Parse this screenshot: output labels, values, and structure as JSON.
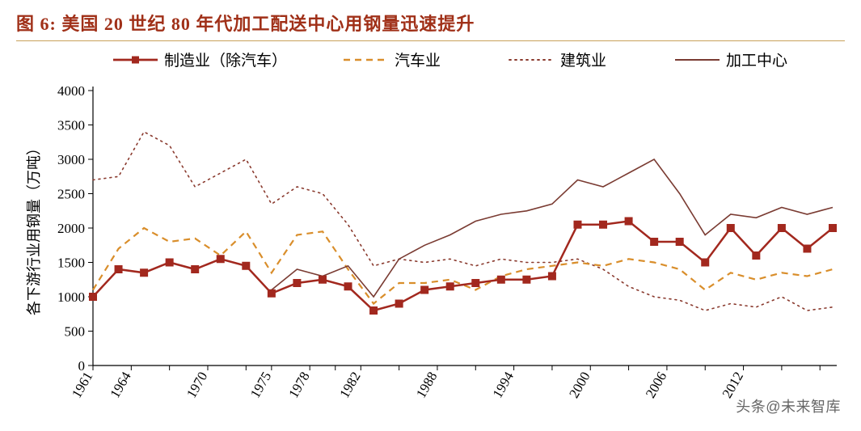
{
  "title": "图 6:  美国 20 世纪 80 年代加工配送中心用钢量迅速提升",
  "watermark": "头条@未来智库",
  "chart": {
    "type": "line",
    "ylabel": "各下游行业用钢量（万吨）",
    "ylabel_fontsize": 18,
    "ylim": [
      0,
      4000
    ],
    "ytick_step": 500,
    "yticks": [
      0,
      500,
      1000,
      1500,
      2000,
      2500,
      3000,
      3500,
      4000
    ],
    "xlabels": [
      "1961",
      "1964",
      "1970",
      "1975",
      "1978",
      "1982",
      "1988",
      "1994",
      "2000",
      "2006",
      "2012"
    ],
    "xlabel_rotation": -60,
    "tick_fontsize": 17,
    "background_color": "#ffffff",
    "grid": false,
    "axis_color": "#000000",
    "tick_color": "#000000",
    "legend": {
      "position": "top-center",
      "fontsize": 19,
      "items": [
        {
          "key": "manufacturing",
          "label": "制造业（除汽车）"
        },
        {
          "key": "auto",
          "label": "汽车业"
        },
        {
          "key": "construction",
          "label": "建筑业"
        },
        {
          "key": "processing",
          "label": "加工中心"
        }
      ]
    },
    "series": {
      "manufacturing": {
        "color": "#a2281e",
        "line_width": 2.5,
        "style": "solid",
        "marker": "square",
        "marker_size": 9,
        "x": [
          1961,
          1963,
          1965,
          1967,
          1969,
          1971,
          1973,
          1975,
          1977,
          1979,
          1981,
          1983,
          1985,
          1987,
          1989,
          1991,
          1993,
          1995,
          1997,
          1999,
          2001,
          2003,
          2005,
          2007,
          2009,
          2011,
          2013,
          2015,
          2017,
          2019
        ],
        "y": [
          1000,
          1400,
          1350,
          1500,
          1400,
          1550,
          1450,
          1050,
          1200,
          1250,
          1150,
          800,
          900,
          1100,
          1150,
          1200,
          1250,
          1250,
          1300,
          2050,
          2050,
          2100,
          1800,
          1800,
          1500,
          2000,
          1600,
          2000,
          1700,
          2000
        ]
      },
      "auto": {
        "color": "#d98e2b",
        "line_width": 2.2,
        "style": "dashed",
        "dash": "8,6",
        "marker": null,
        "x": [
          1961,
          1963,
          1965,
          1967,
          1969,
          1971,
          1973,
          1975,
          1977,
          1979,
          1981,
          1983,
          1985,
          1987,
          1989,
          1991,
          1993,
          1995,
          1997,
          1999,
          2001,
          2003,
          2005,
          2007,
          2009,
          2011,
          2013,
          2015,
          2017,
          2019
        ],
        "y": [
          1100,
          1700,
          2000,
          1800,
          1850,
          1600,
          1950,
          1350,
          1900,
          1950,
          1400,
          900,
          1200,
          1200,
          1250,
          1100,
          1300,
          1400,
          1450,
          1500,
          1450,
          1550,
          1500,
          1400,
          1100,
          1350,
          1250,
          1350,
          1300,
          1400
        ]
      },
      "construction": {
        "color": "#8a3a2e",
        "line_width": 1.6,
        "style": "dotted",
        "dash": "2,5",
        "marker": null,
        "x": [
          1961,
          1963,
          1965,
          1967,
          1969,
          1971,
          1973,
          1975,
          1977,
          1979,
          1981,
          1983,
          1985,
          1987,
          1989,
          1991,
          1993,
          1995,
          1997,
          1999,
          2001,
          2003,
          2005,
          2007,
          2009,
          2011,
          2013,
          2015,
          2017,
          2019
        ],
        "y": [
          2700,
          2750,
          3400,
          3200,
          2600,
          2800,
          3000,
          2350,
          2600,
          2500,
          2050,
          1450,
          1550,
          1500,
          1550,
          1450,
          1550,
          1500,
          1500,
          1550,
          1400,
          1150,
          1000,
          950,
          800,
          900,
          850,
          1000,
          800,
          850
        ]
      },
      "processing": {
        "color": "#7a3b32",
        "line_width": 1.6,
        "style": "solid",
        "marker": null,
        "x": [
          1975,
          1977,
          1979,
          1981,
          1983,
          1985,
          1987,
          1989,
          1991,
          1993,
          1995,
          1997,
          1999,
          2001,
          2003,
          2005,
          2007,
          2009,
          2011,
          2013,
          2015,
          2017,
          2019
        ],
        "y": [
          1100,
          1400,
          1300,
          1450,
          1000,
          1550,
          1750,
          1900,
          2100,
          2200,
          2250,
          2350,
          2700,
          2600,
          2800,
          3000,
          2500,
          1900,
          2200,
          2150,
          2300,
          2200,
          2300
        ]
      }
    }
  }
}
